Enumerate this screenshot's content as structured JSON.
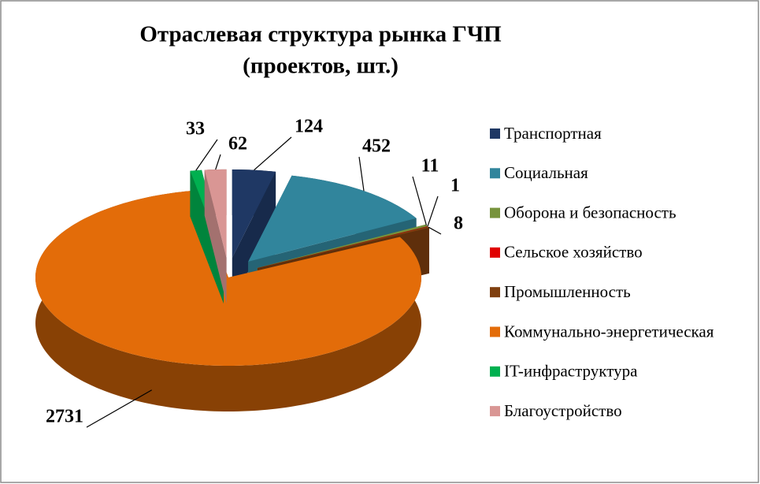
{
  "chart_data": {
    "type": "pie",
    "title": "Отраслевая структура рынка ГЧП",
    "subtitle": "(проектов, шт.)",
    "categories": [
      "Транспортная",
      "Социальная",
      "Оборона и безопасность",
      "Сельское хозяйство",
      "Промышленность",
      "Коммунально-энергетическая",
      "IT-инфраструктура",
      "Благоустройство"
    ],
    "values": [
      124,
      452,
      11,
      1,
      8,
      2731,
      33,
      62
    ],
    "colors": [
      "#1f3864",
      "#31859c",
      "#77933c",
      "#e00000",
      "#7f3f0f",
      "#e36c09",
      "#00b050",
      "#d99694"
    ],
    "legend": "right"
  }
}
